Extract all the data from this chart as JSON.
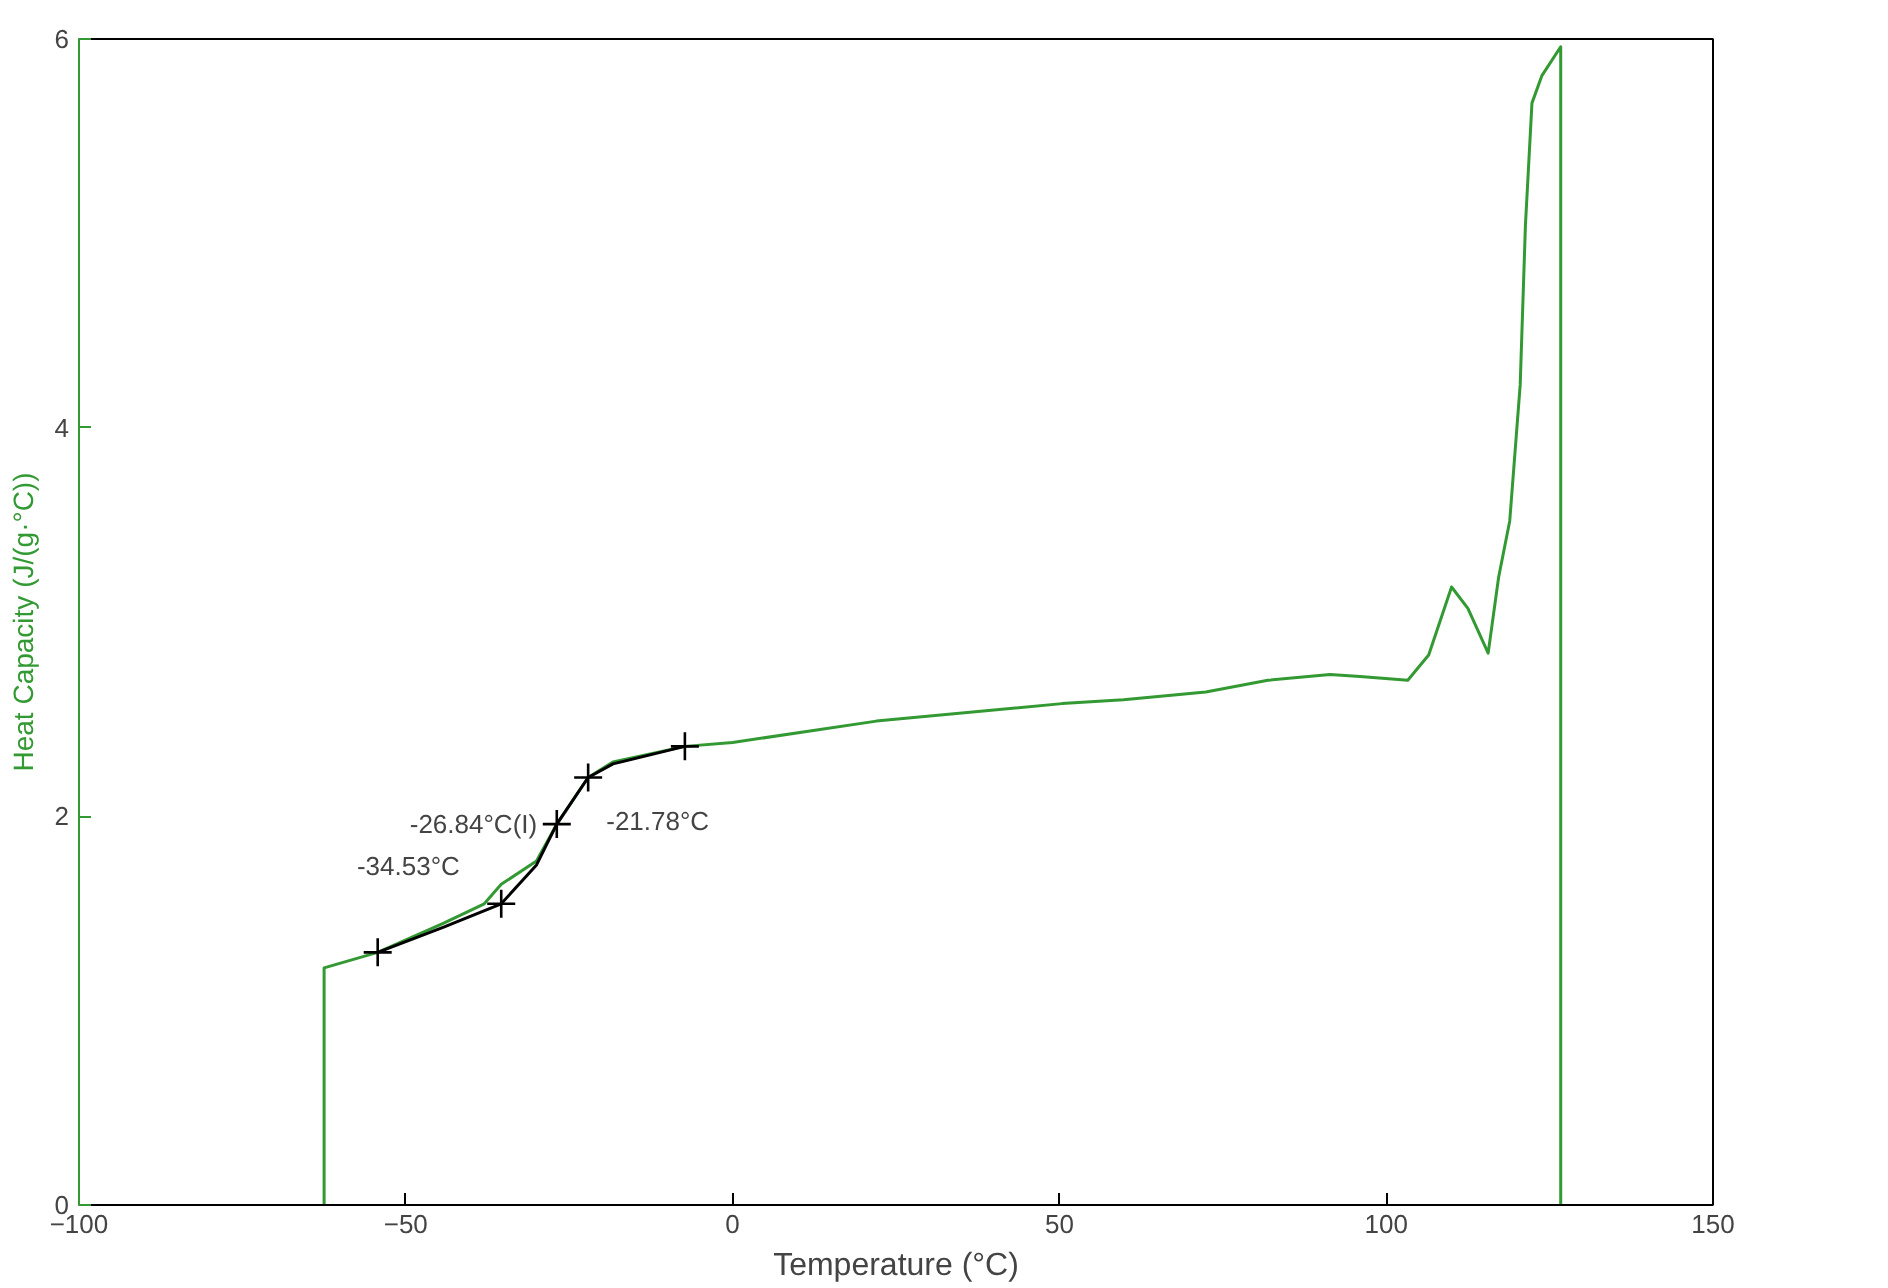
{
  "chart_data": {
    "type": "line",
    "xlabel": "Temperature (°C)",
    "ylabel": "Heat Capacity (J/(g·°C))",
    "xlim": [
      -100,
      150
    ],
    "ylim": [
      0,
      6
    ],
    "xticks": [
      -100,
      -50,
      0,
      50,
      100,
      150
    ],
    "yticks": [
      0,
      2,
      4,
      6
    ],
    "grid": false,
    "line_style": "solid",
    "series": [
      {
        "color": "#339933",
        "x": [
          -62.5,
          -62.5,
          -54.3,
          -44.2,
          -38,
          -35.4,
          -30,
          -26.9,
          -22.1,
          -18.3,
          -7.3,
          0,
          22,
          50.4,
          59.8,
          72.4,
          81.9,
          91.4,
          96,
          103.3,
          106.5,
          110,
          112.5,
          115.6,
          117.2,
          118.9,
          120.5,
          121.3,
          122.3,
          123.8,
          126.7,
          126.7
        ],
        "values": [
          0,
          1.22,
          1.3,
          1.45,
          1.55,
          1.65,
          1.77,
          1.96,
          2.2,
          2.28,
          2.36,
          2.38,
          2.49,
          2.58,
          2.6,
          2.64,
          2.7,
          2.73,
          2.72,
          2.7,
          2.83,
          3.18,
          3.07,
          2.84,
          3.23,
          3.52,
          4.22,
          5.04,
          5.67,
          5.81,
          5.96,
          0
        ]
      },
      {
        "color": "#000000",
        "x": [
          -54.3,
          -44.2,
          -35.4,
          -30,
          -26.9,
          -22.1,
          -18.3,
          -7.3
        ],
        "values": [
          1.3,
          1.43,
          1.55,
          1.75,
          1.96,
          2.2,
          2.27,
          2.36
        ]
      },
      {
        "type": "scatter",
        "marker": "cross",
        "color": "#000000",
        "x": [
          -54.3,
          -35.4,
          -26.9,
          -22.1,
          -7.3
        ],
        "values": [
          1.3,
          1.55,
          1.96,
          2.2,
          2.36
        ]
      }
    ],
    "annotations": [
      {
        "text": "-34.53°C",
        "x": -34.53,
        "y": 1.58
      },
      {
        "text": "-26.84°C(I)",
        "x": -26.84,
        "y": 1.96
      },
      {
        "text": "-21.78°C",
        "x": -21.78,
        "y": 2.2
      }
    ]
  }
}
